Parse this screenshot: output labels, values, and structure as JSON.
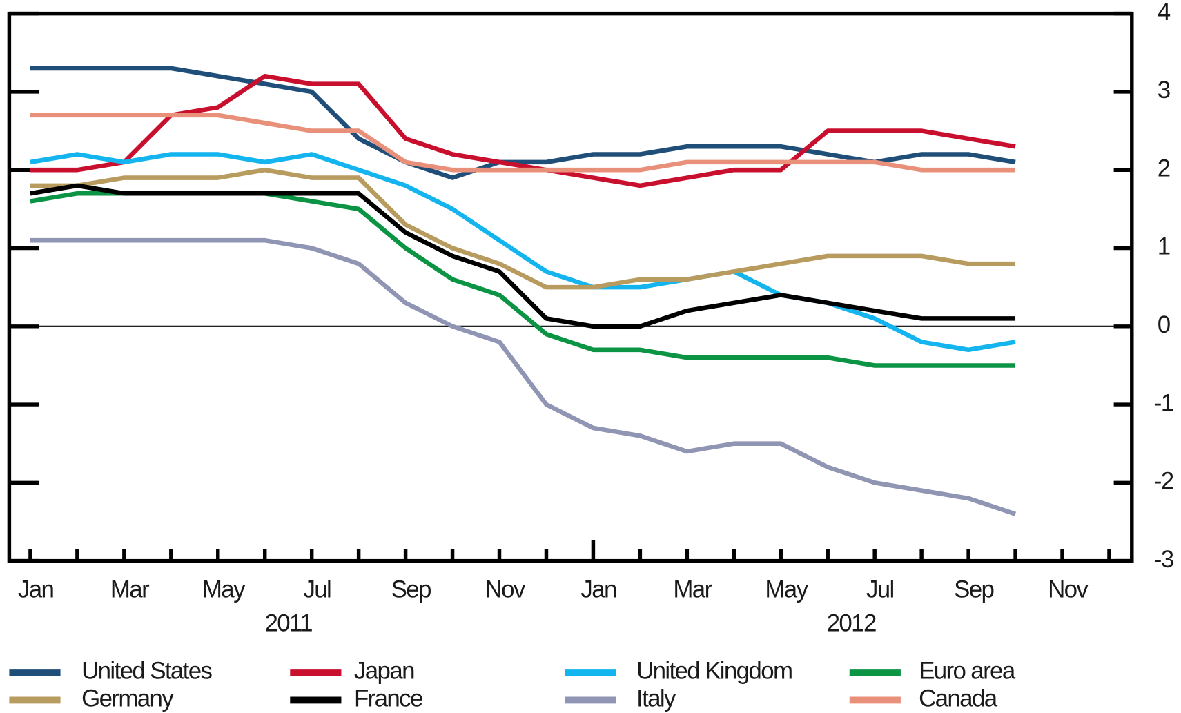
{
  "chart_data": {
    "type": "line",
    "categories": [
      "Jan",
      null,
      "Mar",
      null,
      "May",
      null,
      "Jul",
      null,
      "Sep",
      null,
      "Nov",
      null,
      "Jan",
      null,
      "Mar",
      null,
      "May",
      null,
      "Jul",
      null,
      "Sep",
      null,
      "Nov",
      null
    ],
    "year_labels": [
      "2011",
      "2012"
    ],
    "ylim": [
      -3,
      4
    ],
    "yticks": [
      -3,
      -2,
      -1,
      0,
      1,
      2,
      3,
      4
    ],
    "reference_line": 0,
    "series": [
      {
        "name": "United States",
        "color": "#1f4e79",
        "values": [
          3.3,
          3.3,
          3.3,
          3.3,
          3.2,
          3.1,
          3.0,
          2.4,
          2.1,
          1.9,
          2.1,
          2.1,
          2.2,
          2.2,
          2.3,
          2.3,
          2.3,
          2.2,
          2.1,
          2.2,
          2.2,
          2.1,
          null,
          null
        ]
      },
      {
        "name": "Japan",
        "color": "#c8102e",
        "values": [
          2.0,
          2.0,
          2.1,
          2.7,
          2.8,
          3.2,
          3.1,
          3.1,
          2.4,
          2.2,
          2.1,
          2.0,
          1.9,
          1.8,
          1.9,
          2.0,
          2.0,
          2.5,
          2.5,
          2.5,
          2.4,
          2.3,
          null,
          null
        ]
      },
      {
        "name": "United Kingdom",
        "color": "#14b4ee",
        "values": [
          2.1,
          2.2,
          2.1,
          2.2,
          2.2,
          2.1,
          2.2,
          2.0,
          1.8,
          1.5,
          1.1,
          0.7,
          0.5,
          0.5,
          0.6,
          0.7,
          0.4,
          0.3,
          0.1,
          -0.2,
          -0.3,
          -0.2,
          null,
          null
        ]
      },
      {
        "name": "Euro area",
        "color": "#0c9445",
        "values": [
          1.6,
          1.7,
          1.7,
          1.7,
          1.7,
          1.7,
          1.6,
          1.5,
          1.0,
          0.6,
          0.4,
          -0.1,
          -0.3,
          -0.3,
          -0.4,
          -0.4,
          -0.4,
          -0.4,
          -0.5,
          -0.5,
          -0.5,
          -0.5,
          null,
          null
        ]
      },
      {
        "name": "Germany",
        "color": "#b89b5e",
        "values": [
          1.8,
          1.8,
          1.9,
          1.9,
          1.9,
          2.0,
          1.9,
          1.9,
          1.3,
          1.0,
          0.8,
          0.5,
          0.5,
          0.6,
          0.6,
          0.7,
          0.8,
          0.9,
          0.9,
          0.9,
          0.8,
          0.8,
          null,
          null
        ]
      },
      {
        "name": "France",
        "color": "#000000",
        "values": [
          1.7,
          1.8,
          1.7,
          1.7,
          1.7,
          1.7,
          1.7,
          1.7,
          1.2,
          0.9,
          0.7,
          0.1,
          0.0,
          0.0,
          0.2,
          0.3,
          0.4,
          0.3,
          0.2,
          0.1,
          0.1,
          0.1,
          null,
          null
        ]
      },
      {
        "name": "Italy",
        "color": "#8f95b3",
        "values": [
          1.1,
          1.1,
          1.1,
          1.1,
          1.1,
          1.1,
          1.0,
          0.8,
          0.3,
          0.0,
          -0.2,
          -1.0,
          -1.3,
          -1.4,
          -1.6,
          -1.5,
          -1.5,
          -1.8,
          -2.0,
          -2.1,
          -2.2,
          -2.4,
          null,
          null
        ]
      },
      {
        "name": "Canada",
        "color": "#e8907a",
        "values": [
          2.7,
          2.7,
          2.7,
          2.7,
          2.7,
          2.6,
          2.5,
          2.5,
          2.1,
          2.0,
          2.0,
          2.0,
          2.0,
          2.0,
          2.1,
          2.1,
          2.1,
          2.1,
          2.1,
          2.0,
          2.0,
          2.0,
          null,
          null
        ]
      }
    ]
  }
}
